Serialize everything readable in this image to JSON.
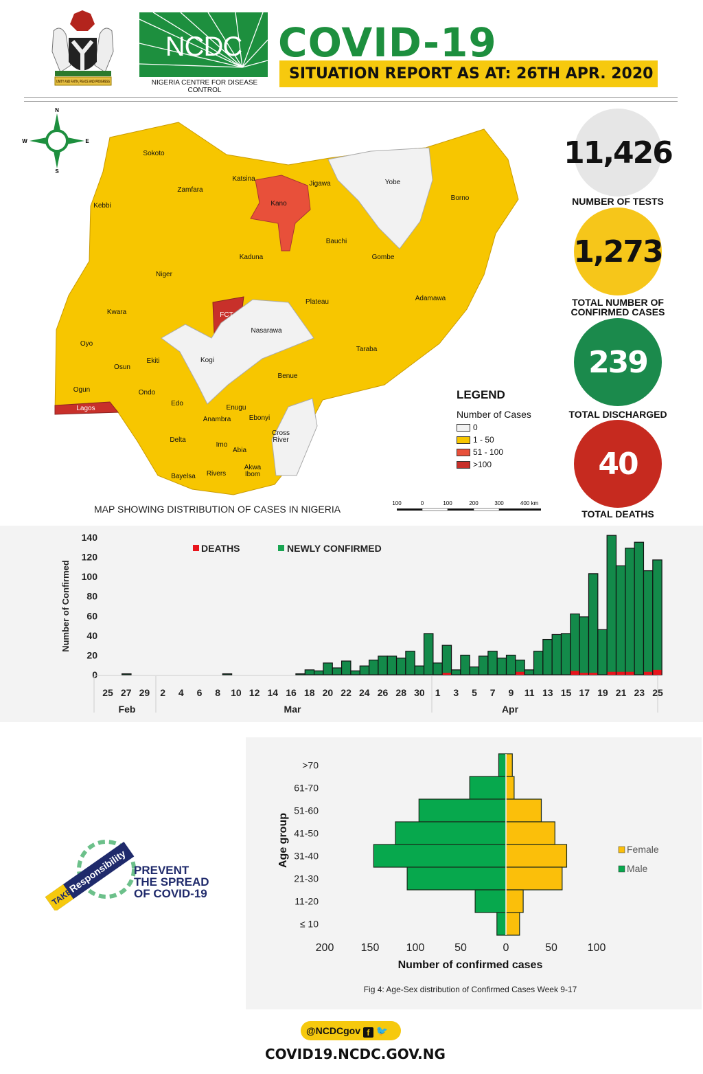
{
  "header": {
    "crest_motto": "UNITY AND FAITH, PEACE AND PROGRESS",
    "logo_text": "NCDC",
    "org_name": "NIGERIA CENTRE FOR DISEASE CONTROL",
    "title": "COVID-19",
    "subtitle": "SITUATION REPORT AS AT: 26TH APR. 2020"
  },
  "stats": [
    {
      "value": "11,426",
      "label": "NUMBER OF TESTS",
      "color": "#e6e6e6",
      "text_color": "#111111"
    },
    {
      "value": "1,273",
      "label": "TOTAL NUMBER OF CONFIRMED CASES",
      "color": "#f6c61a",
      "text_color": "#111111"
    },
    {
      "value": "239",
      "label": "TOTAL DISCHARGED",
      "color": "#1b8a4c",
      "text_color": "#ffffff"
    },
    {
      "value": "40",
      "label": "TOTAL DEATHS",
      "color": "#c62a1f",
      "text_color": "#ffffff"
    }
  ],
  "map": {
    "caption": "MAP SHOWING DISTRIBUTION OF CASES IN NIGERIA",
    "compass": {
      "n": "N",
      "s": "S",
      "e": "E",
      "w": "W"
    },
    "legend": {
      "title": "LEGEND",
      "subtitle": "Number of Cases",
      "items": [
        {
          "label": "0",
          "color": "#f2f2f2"
        },
        {
          "label": "1 - 50",
          "color": "#f7c600"
        },
        {
          "label": "51 - 100",
          "color": "#e8503a"
        },
        {
          "label": ">100",
          "color": "#c8302a"
        }
      ]
    },
    "scale_labels": [
      "100",
      "0",
      "100",
      "200",
      "300",
      "400 km"
    ],
    "states": [
      "Sokoto",
      "Katsina",
      "Jigawa",
      "Yobe",
      "Borno",
      "Zamfara",
      "Kebbi",
      "Kano",
      "Bauchi",
      "Gombe",
      "Kaduna",
      "Niger",
      "Adamawa",
      "Plateau",
      "FCT",
      "Kwara",
      "Nasarawa",
      "Oyo",
      "Taraba",
      "Ekiti",
      "Kogi",
      "Osun",
      "Benue",
      "Ogun",
      "Ondo",
      "Edo",
      "Enugu",
      "Lagos",
      "Anambra",
      "Ebonyi",
      "Cross River",
      "Delta",
      "Imo",
      "Abia",
      "Akwa Ibom",
      "Bayelsa",
      "Rivers"
    ]
  },
  "chart_data": [
    {
      "type": "bar",
      "title": "",
      "ylabel": "Number of Confirmed",
      "xlabel": "",
      "ylim": [
        0,
        140
      ],
      "yticks": [
        "0",
        "20",
        "40",
        "60",
        "80",
        "100",
        "120",
        "140"
      ],
      "legend_placement": "top",
      "x_tick_labels": [
        "25",
        "27",
        "29",
        "2",
        "4",
        "6",
        "8",
        "10",
        "12",
        "14",
        "16",
        "18",
        "20",
        "22",
        "24",
        "26",
        "28",
        "30",
        "1",
        "3",
        "5",
        "7",
        "9",
        "11",
        "13",
        "15",
        "17",
        "19",
        "21",
        "23",
        "25"
      ],
      "month_labels": [
        "Feb",
        "Mar",
        "Apr"
      ],
      "x_range": [
        "2020-02-25",
        "2020-04-25"
      ],
      "stacked": true,
      "series": [
        {
          "name": "DEATHS",
          "color": "#e8141c",
          "points": {
            "2020-04-02": 2,
            "2020-04-10": 3,
            "2020-04-16": 4,
            "2020-04-17": 2,
            "2020-04-18": 2,
            "2020-04-20": 3,
            "2020-04-21": 3,
            "2020-04-22": 3,
            "2020-04-24": 3,
            "2020-04-25": 5
          }
        },
        {
          "name": "NEWLY CONFIRMED",
          "color": "#138a4a",
          "points": {
            "2020-02-27": 1,
            "2020-03-09": 1,
            "2020-03-17": 1,
            "2020-03-18": 5,
            "2020-03-19": 4,
            "2020-03-20": 12,
            "2020-03-21": 7,
            "2020-03-22": 14,
            "2020-03-23": 4,
            "2020-03-24": 9,
            "2020-03-25": 15,
            "2020-03-26": 19,
            "2020-03-27": 19,
            "2020-03-28": 17,
            "2020-03-29": 24,
            "2020-03-30": 9,
            "2020-03-31": 42,
            "2020-04-01": 12,
            "2020-04-02": 30,
            "2020-04-03": 5,
            "2020-04-04": 20,
            "2020-04-05": 8,
            "2020-04-06": 19,
            "2020-04-07": 24,
            "2020-04-08": 17,
            "2020-04-09": 20,
            "2020-04-10": 15,
            "2020-04-11": 5,
            "2020-04-12": 24,
            "2020-04-13": 36,
            "2020-04-14": 41,
            "2020-04-15": 42,
            "2020-04-16": 62,
            "2020-04-17": 59,
            "2020-04-18": 103,
            "2020-04-19": 46,
            "2020-04-20": 142,
            "2020-04-21": 111,
            "2020-04-22": 129,
            "2020-04-23": 135,
            "2020-04-24": 106,
            "2020-04-25": 117
          }
        }
      ]
    },
    {
      "type": "bar",
      "orientation": "horizontal-pyramid",
      "title": "",
      "caption": "Fig 4: Age-Sex distribution of Confirmed Cases Week 9-17",
      "xlabel": "Number of confirmed cases",
      "ylabel": "Age group",
      "xticks": [
        "200",
        "150",
        "100",
        "50",
        "0",
        "50",
        "100"
      ],
      "xlim": [
        -200,
        100
      ],
      "legend_placement": "right",
      "categories": [
        ">70",
        "61-70",
        "51-60",
        "41-50",
        "31-40",
        "21-30",
        "11-20",
        "≤ 10"
      ],
      "series": [
        {
          "name": "Female",
          "color": "#fbbf0a",
          "values": [
            7,
            9,
            39,
            54,
            67,
            62,
            19,
            15
          ]
        },
        {
          "name": "Male",
          "color": "#07a84d",
          "values": [
            8,
            40,
            96,
            122,
            146,
            109,
            34,
            10
          ]
        }
      ]
    }
  ],
  "campaign": {
    "badge_take": "TAKE",
    "badge_resp": "Responsibility",
    "line1": "PREVENT",
    "line2": "THE SPREAD",
    "line3": "OF COVID-19"
  },
  "footer": {
    "handle": "@NCDCgov",
    "url": "COVID19.NCDC.GOV.NG"
  }
}
